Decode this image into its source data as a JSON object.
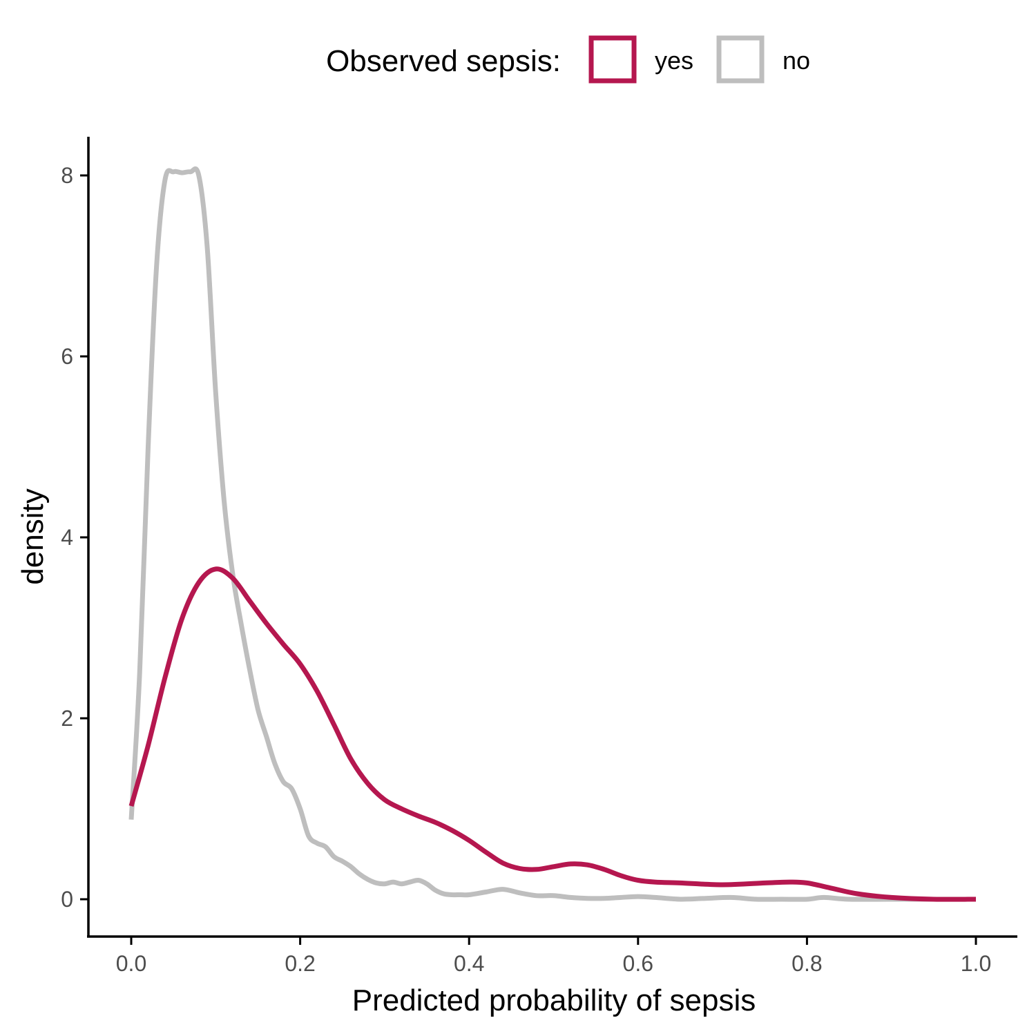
{
  "chart_data": {
    "type": "line",
    "xlabel": "Predicted probability of sepsis",
    "ylabel": "density",
    "xlim": [
      -0.05,
      1.05
    ],
    "ylim": [
      -0.4,
      8.4
    ],
    "x_ticks": [
      0.0,
      0.2,
      0.4,
      0.6,
      0.8,
      1.0
    ],
    "x_tick_labels": [
      "0.0",
      "0.2",
      "0.4",
      "0.6",
      "0.8",
      "1.0"
    ],
    "y_ticks": [
      0,
      2,
      4,
      6,
      8
    ],
    "y_tick_labels": [
      "0",
      "2",
      "4",
      "6",
      "8"
    ],
    "grid": false,
    "legend": {
      "title": "Observed sepsis:",
      "position": "top",
      "entries": [
        "yes",
        "no"
      ]
    },
    "series": [
      {
        "name": "yes",
        "color": "#B5174F",
        "x": [
          0.0,
          0.02,
          0.04,
          0.06,
          0.08,
          0.1,
          0.12,
          0.14,
          0.16,
          0.18,
          0.2,
          0.22,
          0.24,
          0.26,
          0.28,
          0.3,
          0.32,
          0.34,
          0.36,
          0.38,
          0.4,
          0.42,
          0.44,
          0.46,
          0.48,
          0.5,
          0.52,
          0.54,
          0.56,
          0.58,
          0.6,
          0.62,
          0.65,
          0.7,
          0.75,
          0.78,
          0.8,
          0.83,
          0.86,
          0.9,
          0.95,
          1.0
        ],
        "y": [
          1.03,
          1.7,
          2.45,
          3.1,
          3.5,
          3.65,
          3.55,
          3.3,
          3.05,
          2.82,
          2.6,
          2.3,
          1.93,
          1.55,
          1.28,
          1.1,
          1.0,
          0.92,
          0.85,
          0.76,
          0.65,
          0.52,
          0.4,
          0.34,
          0.33,
          0.36,
          0.39,
          0.38,
          0.33,
          0.26,
          0.21,
          0.19,
          0.18,
          0.16,
          0.18,
          0.19,
          0.18,
          0.12,
          0.06,
          0.02,
          0.0,
          0.0
        ]
      },
      {
        "name": "no",
        "color": "#BEBEBE",
        "x": [
          0.0,
          0.01,
          0.02,
          0.03,
          0.04,
          0.05,
          0.06,
          0.07,
          0.08,
          0.09,
          0.1,
          0.11,
          0.12,
          0.13,
          0.14,
          0.15,
          0.16,
          0.17,
          0.18,
          0.19,
          0.2,
          0.21,
          0.22,
          0.23,
          0.24,
          0.25,
          0.26,
          0.27,
          0.28,
          0.29,
          0.3,
          0.31,
          0.32,
          0.33,
          0.34,
          0.35,
          0.36,
          0.37,
          0.38,
          0.39,
          0.4,
          0.42,
          0.44,
          0.46,
          0.48,
          0.5,
          0.52,
          0.54,
          0.56,
          0.58,
          0.6,
          0.62,
          0.65,
          0.68,
          0.71,
          0.74,
          0.77,
          0.8,
          0.82,
          0.85,
          0.9,
          0.95,
          1.0
        ],
        "y": [
          0.88,
          2.5,
          5.0,
          7.0,
          7.95,
          8.04,
          8.03,
          8.04,
          8.0,
          7.2,
          5.6,
          4.4,
          3.6,
          3.05,
          2.55,
          2.1,
          1.8,
          1.5,
          1.3,
          1.22,
          1.0,
          0.7,
          0.62,
          0.58,
          0.47,
          0.42,
          0.36,
          0.28,
          0.22,
          0.18,
          0.17,
          0.19,
          0.17,
          0.19,
          0.21,
          0.17,
          0.1,
          0.06,
          0.05,
          0.05,
          0.05,
          0.08,
          0.11,
          0.07,
          0.04,
          0.04,
          0.02,
          0.01,
          0.01,
          0.02,
          0.03,
          0.02,
          0.0,
          0.01,
          0.02,
          0.0,
          0.0,
          0.0,
          0.02,
          0.0,
          0.0,
          0.0,
          0.0
        ]
      }
    ]
  }
}
